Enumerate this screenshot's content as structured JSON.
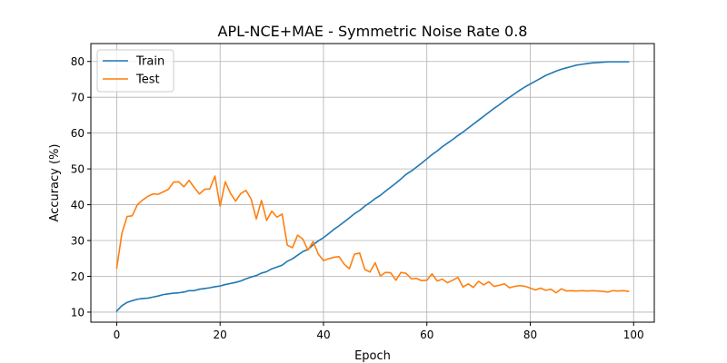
{
  "chart_data": {
    "type": "line",
    "title": "APL-NCE+MAE - Symmetric Noise Rate 0.8",
    "xlabel": "Epoch",
    "ylabel": "Accuracy (%)",
    "xlim": [
      -5,
      104
    ],
    "ylim": [
      7.2,
      85.0
    ],
    "xticks": [
      0,
      20,
      40,
      60,
      80,
      100
    ],
    "yticks": [
      10,
      20,
      30,
      40,
      50,
      60,
      70,
      80
    ],
    "grid": true,
    "legend_position": "top-left",
    "series": [
      {
        "name": "Train",
        "color": "#1f77b4",
        "x": [
          0,
          1,
          2,
          3,
          4,
          5,
          6,
          7,
          8,
          9,
          10,
          11,
          12,
          13,
          14,
          15,
          16,
          17,
          18,
          19,
          20,
          21,
          22,
          23,
          24,
          25,
          26,
          27,
          28,
          29,
          30,
          31,
          32,
          33,
          34,
          35,
          36,
          37,
          38,
          39,
          40,
          41,
          42,
          43,
          44,
          45,
          46,
          47,
          48,
          49,
          50,
          51,
          52,
          53,
          54,
          55,
          56,
          57,
          58,
          59,
          60,
          61,
          62,
          63,
          64,
          65,
          66,
          67,
          68,
          69,
          70,
          71,
          72,
          73,
          74,
          75,
          76,
          77,
          78,
          79,
          80,
          81,
          82,
          83,
          84,
          85,
          86,
          87,
          88,
          89,
          90,
          91,
          92,
          93,
          94,
          95,
          96,
          97,
          98,
          99
        ],
        "values": [
          10.3,
          11.8,
          12.7,
          13.2,
          13.6,
          13.8,
          13.9,
          14.2,
          14.5,
          14.9,
          15.1,
          15.3,
          15.4,
          15.6,
          16.0,
          16.0,
          16.4,
          16.6,
          16.8,
          17.1,
          17.3,
          17.7,
          18.0,
          18.3,
          18.7,
          19.3,
          19.8,
          20.2,
          20.9,
          21.3,
          22.1,
          22.6,
          23.1,
          24.2,
          24.9,
          25.9,
          26.9,
          27.5,
          28.8,
          29.9,
          30.8,
          31.9,
          33.1,
          34.1,
          35.2,
          36.3,
          37.5,
          38.4,
          39.6,
          40.6,
          41.7,
          42.6,
          43.8,
          44.9,
          46.0,
          47.2,
          48.5,
          49.4,
          50.5,
          51.6,
          52.8,
          54.0,
          55.0,
          56.2,
          57.2,
          58.2,
          59.3,
          60.3,
          61.4,
          62.5,
          63.6,
          64.7,
          65.8,
          66.9,
          67.9,
          69.0,
          70.0,
          71.0,
          72.0,
          72.9,
          73.7,
          74.5,
          75.3,
          76.1,
          76.7,
          77.3,
          77.8,
          78.2,
          78.6,
          79.0,
          79.2,
          79.4,
          79.6,
          79.7,
          79.8,
          79.9,
          79.9,
          79.9,
          79.9,
          79.9
        ]
      },
      {
        "name": "Test",
        "color": "#ff7f0e",
        "x": [
          0,
          1,
          2,
          3,
          4,
          5,
          6,
          7,
          8,
          9,
          10,
          11,
          12,
          13,
          14,
          15,
          16,
          17,
          18,
          19,
          20,
          21,
          22,
          23,
          24,
          25,
          26,
          27,
          28,
          29,
          30,
          31,
          32,
          33,
          34,
          35,
          36,
          37,
          38,
          39,
          40,
          41,
          42,
          43,
          44,
          45,
          46,
          47,
          48,
          49,
          50,
          51,
          52,
          53,
          54,
          55,
          56,
          57,
          58,
          59,
          60,
          61,
          62,
          63,
          64,
          65,
          66,
          67,
          68,
          69,
          70,
          71,
          72,
          73,
          74,
          75,
          76,
          77,
          78,
          79,
          80,
          81,
          82,
          83,
          84,
          85,
          86,
          87,
          88,
          89,
          90,
          91,
          92,
          93,
          94,
          95,
          96,
          97,
          98,
          99
        ],
        "values": [
          22.3,
          32.0,
          36.7,
          36.9,
          40.0,
          41.3,
          42.3,
          43.0,
          42.9,
          43.6,
          44.3,
          46.3,
          46.4,
          45.0,
          46.8,
          44.8,
          43.0,
          44.3,
          44.4,
          48.0,
          39.6,
          46.4,
          43.2,
          41.0,
          43.1,
          44.0,
          41.6,
          36.0,
          41.2,
          35.6,
          38.2,
          36.5,
          37.4,
          28.7,
          28.0,
          31.5,
          30.4,
          27.3,
          29.7,
          26.2,
          24.4,
          24.9,
          25.3,
          25.5,
          23.4,
          22.1,
          26.2,
          26.5,
          21.9,
          21.2,
          23.8,
          20.1,
          21.1,
          21.0,
          18.9,
          21.1,
          20.8,
          19.3,
          19.4,
          18.8,
          18.9,
          20.7,
          18.7,
          19.2,
          18.2,
          18.9,
          19.7,
          17.0,
          17.9,
          16.9,
          18.6,
          17.6,
          18.5,
          17.2,
          17.5,
          17.9,
          16.8,
          17.2,
          17.4,
          17.2,
          16.7,
          16.2,
          16.7,
          16.1,
          16.4,
          15.4,
          16.5,
          15.9,
          16.0,
          15.9,
          16.0,
          15.9,
          16.0,
          15.9,
          15.8,
          15.6,
          16.0,
          15.9,
          16.0,
          15.8
        ]
      }
    ]
  }
}
